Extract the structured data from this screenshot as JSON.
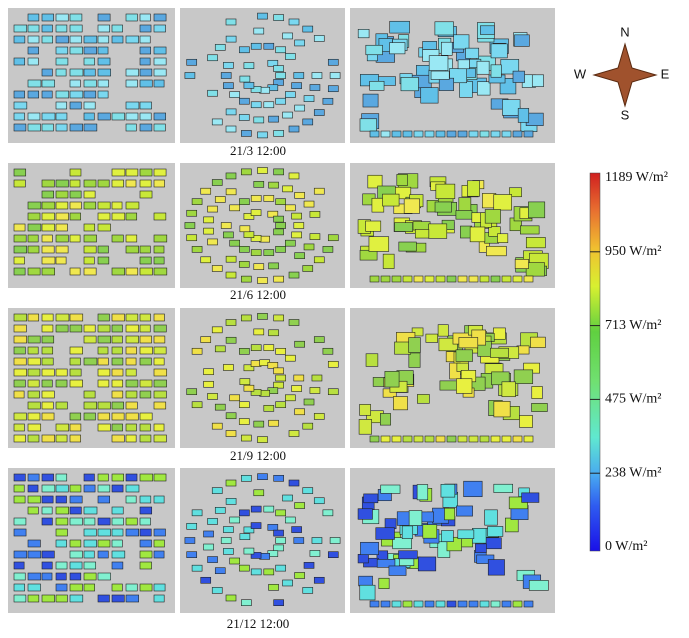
{
  "panels": {
    "dates": [
      "21/3 12:00",
      "21/6 12:00",
      "21/9 12:00",
      "21/12 12:00"
    ]
  },
  "compass": {
    "north": "N",
    "south": "S",
    "west": "W",
    "east": "E"
  },
  "color_scale": {
    "labels": [
      "1189 W/m²",
      "950 W/m²",
      "713 W/m²",
      "475 W/m²",
      "238 W/m²",
      "0 W/m²"
    ]
  }
}
